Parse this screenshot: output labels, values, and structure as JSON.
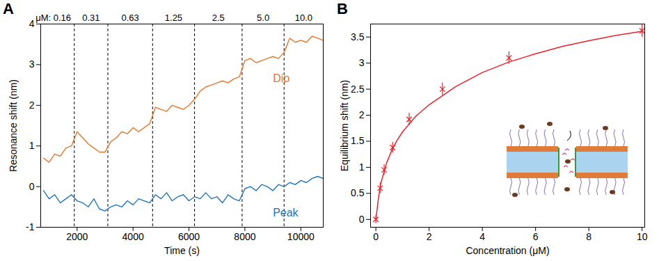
{
  "chart_data": [
    {
      "panel": "A",
      "type": "line",
      "xlabel": "Time (s)",
      "ylabel": "Resonance shift (nm)",
      "xlim": [
        700,
        10800
      ],
      "xticks": [
        2000,
        4000,
        6000,
        8000,
        10000
      ],
      "ylim": [
        -1,
        4
      ],
      "yticks": [
        -1,
        0,
        1,
        2,
        3,
        4
      ],
      "grid": false,
      "x": [
        800,
        1000,
        1200,
        1400,
        1600,
        1800,
        2000,
        2200,
        2400,
        2600,
        2800,
        3000,
        3200,
        3400,
        3600,
        3800,
        4000,
        4200,
        4400,
        4600,
        4800,
        5000,
        5200,
        5400,
        5600,
        5800,
        6000,
        6200,
        6400,
        6600,
        6800,
        7000,
        7200,
        7400,
        7600,
        7800,
        8000,
        8200,
        8400,
        8600,
        8800,
        9000,
        9200,
        9400,
        9600,
        9800,
        10000,
        10200,
        10400,
        10600,
        10800
      ],
      "series": [
        {
          "name": "Dip",
          "color": "#e4772f",
          "label_x": 9000,
          "label_y": 2.65,
          "values": [
            0.7,
            0.6,
            0.8,
            0.75,
            0.95,
            1.0,
            1.35,
            1.2,
            1.05,
            0.95,
            0.85,
            0.85,
            1.1,
            1.2,
            1.35,
            1.3,
            1.45,
            1.35,
            1.45,
            1.55,
            1.95,
            1.9,
            1.85,
            2.0,
            1.95,
            1.9,
            2.0,
            2.15,
            2.35,
            2.45,
            2.5,
            2.55,
            2.6,
            2.55,
            2.65,
            2.7,
            3.1,
            3.15,
            3.05,
            3.1,
            3.15,
            3.2,
            3.15,
            3.3,
            3.65,
            3.55,
            3.6,
            3.55,
            3.7,
            3.65,
            3.6
          ]
        },
        {
          "name": "Peak",
          "color": "#1f73b7",
          "label_x": 9000,
          "label_y": -0.65,
          "values": [
            -0.1,
            -0.3,
            -0.2,
            -0.4,
            -0.3,
            -0.2,
            -0.35,
            -0.4,
            -0.5,
            -0.3,
            -0.55,
            -0.6,
            -0.5,
            -0.45,
            -0.5,
            -0.35,
            -0.45,
            -0.3,
            -0.35,
            -0.4,
            -0.2,
            -0.3,
            -0.15,
            -0.35,
            -0.25,
            -0.2,
            -0.35,
            -0.25,
            -0.3,
            -0.15,
            -0.3,
            -0.25,
            -0.4,
            -0.2,
            -0.3,
            -0.35,
            -0.05,
            0.0,
            -0.1,
            0.05,
            0.0,
            -0.1,
            0.05,
            0.0,
            0.1,
            0.05,
            0.15,
            0.1,
            0.2,
            0.25,
            0.2
          ]
        }
      ],
      "step_times": [
        1900,
        3100,
        4700,
        6200,
        7900,
        9400
      ],
      "annotations": [
        {
          "x": 1150,
          "text": "μM: 0.16"
        },
        {
          "x": 2500,
          "text": "0.31"
        },
        {
          "x": 3900,
          "text": "0.63"
        },
        {
          "x": 5450,
          "text": "1.25"
        },
        {
          "x": 7050,
          "text": "2.5"
        },
        {
          "x": 8650,
          "text": "5.0"
        },
        {
          "x": 10100,
          "text": "10.0"
        }
      ]
    },
    {
      "panel": "B",
      "type": "scatter",
      "xlabel": "Concentration (μM)",
      "ylabel": "Equilibrium shift (nm)",
      "xlim": [
        -0.2,
        10.1
      ],
      "xticks": [
        0,
        2,
        4,
        6,
        8,
        10
      ],
      "ylim": [
        -0.15,
        3.75
      ],
      "yticks": [
        0,
        0.5,
        1,
        1.5,
        2,
        2.5,
        3,
        3.5
      ],
      "grid": false,
      "color": "#e8232a",
      "marker": "times",
      "x": [
        0,
        0.16,
        0.31,
        0.63,
        1.25,
        2.5,
        5,
        10
      ],
      "values": [
        0,
        0.6,
        0.95,
        1.38,
        1.92,
        2.5,
        3.1,
        3.62
      ],
      "errors": [
        0.08,
        0.1,
        0.1,
        0.1,
        0.12,
        0.12,
        0.12,
        0.12
      ],
      "fit": {
        "type": "line",
        "color": "#e8232a",
        "x": [
          0,
          0.1,
          0.2,
          0.4,
          0.6,
          0.8,
          1,
          1.5,
          2,
          3,
          4,
          5,
          6,
          7,
          8,
          9,
          10
        ],
        "values": [
          0,
          0.42,
          0.72,
          1.08,
          1.33,
          1.52,
          1.68,
          1.98,
          2.2,
          2.55,
          2.82,
          3.02,
          3.18,
          3.32,
          3.43,
          3.53,
          3.61
        ]
      }
    }
  ]
}
